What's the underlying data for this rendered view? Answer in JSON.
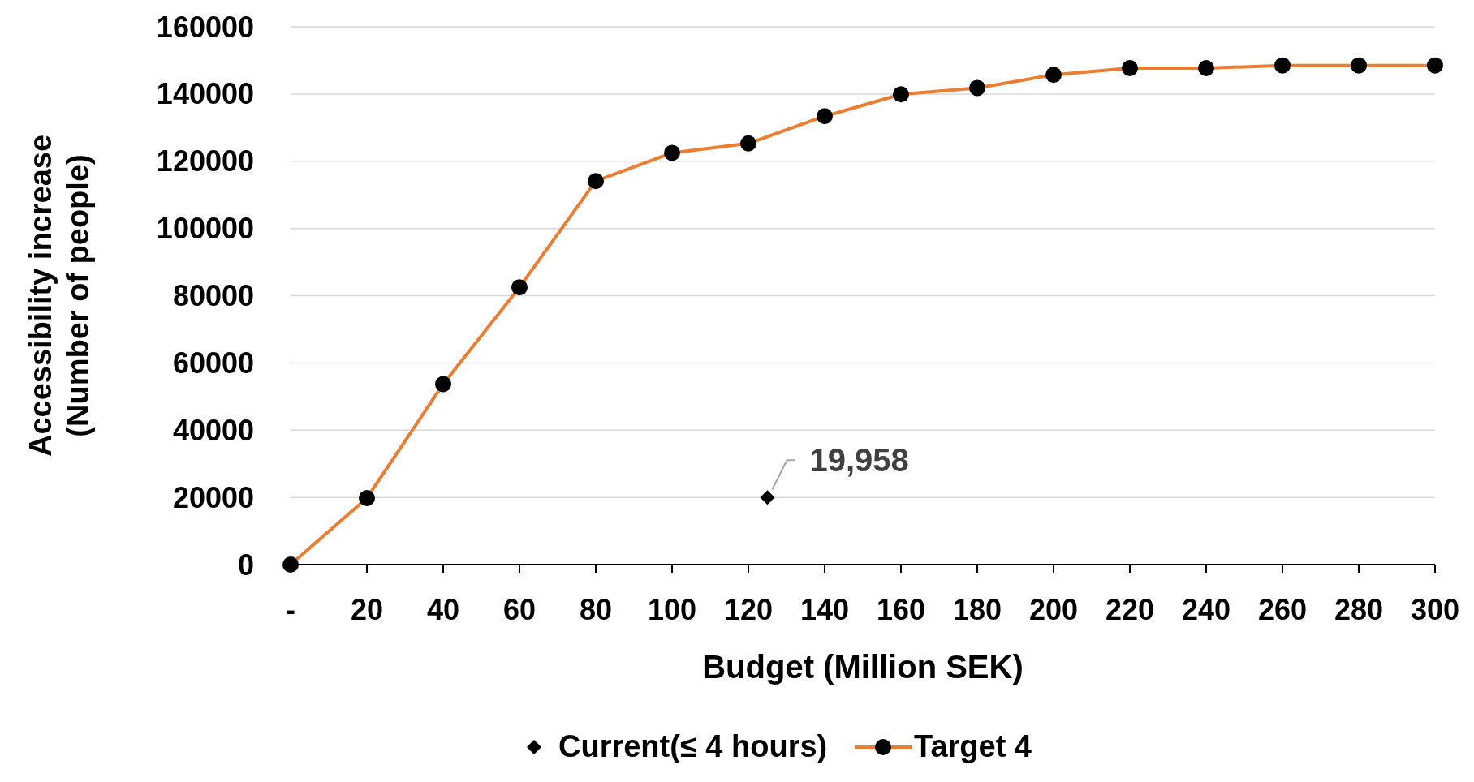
{
  "chart_data": {
    "type": "line",
    "xlabel": "Budget (Million SEK)",
    "ylabel": "Accessibility increase\n(Number of people)",
    "xlim": [
      0,
      300
    ],
    "ylim": [
      0,
      160000
    ],
    "xticks": [
      {
        "value": 0,
        "label": "-"
      },
      20,
      40,
      60,
      80,
      100,
      120,
      140,
      160,
      180,
      200,
      220,
      240,
      260,
      280,
      300
    ],
    "yticks": [
      0,
      20000,
      40000,
      60000,
      80000,
      100000,
      120000,
      140000,
      160000
    ],
    "grid": "y",
    "legend": "bottom",
    "series": [
      {
        "name": "Current(≤ 4 hours)",
        "type": "scatter",
        "marker": "diamond",
        "color": "#000000",
        "x": [
          125
        ],
        "values": [
          19958
        ]
      },
      {
        "name": "Target 4",
        "marker": "circle",
        "color": "#ed7d31",
        "x": [
          0,
          20,
          40,
          60,
          80,
          100,
          120,
          140,
          160,
          180,
          200,
          220,
          240,
          260,
          280,
          300
        ],
        "values": [
          0,
          19800,
          53700,
          82500,
          114100,
          122500,
          125300,
          133400,
          139900,
          141800,
          145700,
          147700,
          147700,
          148500,
          148500,
          148500
        ]
      }
    ],
    "annotations": [
      {
        "text": "19,958",
        "x": 125,
        "y": 19958
      }
    ]
  }
}
